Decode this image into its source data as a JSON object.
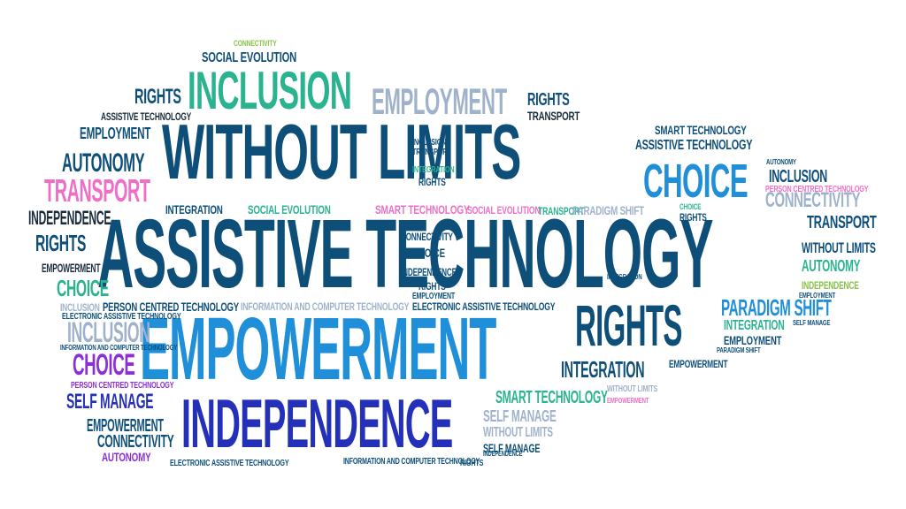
{
  "colors": {
    "navy": "#0e4f7a",
    "navy_dark": "#0b3b61",
    "blue": "#1e8fd8",
    "royal": "#2430b8",
    "teal": "#2ab38f",
    "slate": "#9fb2cc",
    "pink": "#ef6fc6",
    "purple": "#8b2fd6",
    "green": "#8ac24a",
    "black": "#1a2b3a",
    "grey": "#6a7a8a"
  },
  "words": [
    {
      "id": "w1",
      "text": "WITHOUT LIMITS",
      "color": "navy"
    },
    {
      "id": "w2",
      "text": "ASSISTIVE TECHNOLOGY",
      "color": "navy"
    },
    {
      "id": "w3",
      "text": "EMPOWERMENT",
      "color": "blue"
    },
    {
      "id": "w4",
      "text": "INDEPENDENCE",
      "color": "royal"
    },
    {
      "id": "w5",
      "text": "INCLUSION",
      "color": "teal"
    },
    {
      "id": "w6",
      "text": "EMPLOYMENT",
      "color": "slate"
    },
    {
      "id": "w7",
      "text": "CHOICE",
      "color": "blue"
    },
    {
      "id": "w8",
      "text": "RIGHTS",
      "color": "navy"
    },
    {
      "id": "w9",
      "text": "TRANSPORT",
      "color": "pink"
    },
    {
      "id": "w10",
      "text": "AUTONOMY",
      "color": "navy"
    },
    {
      "id": "w11",
      "text": "EMPLOYMENT",
      "color": "navy"
    },
    {
      "id": "w12",
      "text": "INDEPENDENCE",
      "color": "black"
    },
    {
      "id": "w13",
      "text": "RIGHTS",
      "color": "navy"
    },
    {
      "id": "w14",
      "text": "EMPOWERMENT",
      "color": "black"
    },
    {
      "id": "w15",
      "text": "CHOICE",
      "color": "teal"
    },
    {
      "id": "w16",
      "text": "INCLUSION",
      "color": "slate"
    },
    {
      "id": "w17",
      "text": "CHOICE",
      "color": "purple"
    },
    {
      "id": "w18",
      "text": "SELF MANAGE",
      "color": "royal"
    },
    {
      "id": "w19",
      "text": "EMPOWERMENT",
      "color": "navy"
    },
    {
      "id": "w20",
      "text": "CONNECTIVITY",
      "color": "navy"
    },
    {
      "id": "w21",
      "text": "AUTONOMY",
      "color": "purple"
    },
    {
      "id": "w22",
      "text": "SOCIAL EVOLUTION",
      "color": "navy"
    },
    {
      "id": "w23",
      "text": "RIGHTS",
      "color": "navy"
    },
    {
      "id": "w24",
      "text": "ASSISTIVE TECHNOLOGY",
      "color": "black"
    },
    {
      "id": "w25",
      "text": "RIGHTS",
      "color": "navy"
    },
    {
      "id": "w26",
      "text": "TRANSPORT",
      "color": "black"
    },
    {
      "id": "w27",
      "text": "SMART TECHNOLOGY",
      "color": "navy"
    },
    {
      "id": "w28",
      "text": "ASSISTIVE TECHNOLOGY",
      "color": "navy"
    },
    {
      "id": "w29",
      "text": "CONNECTIVITY",
      "color": "slate"
    },
    {
      "id": "w30",
      "text": "TRANSPORT",
      "color": "navy"
    },
    {
      "id": "w31",
      "text": "WITHOUT LIMITS",
      "color": "navy"
    },
    {
      "id": "w32",
      "text": "AUTONOMY",
      "color": "teal"
    },
    {
      "id": "w33",
      "text": "INDEPENDENCE",
      "color": "green"
    },
    {
      "id": "w34",
      "text": "PARADIGM SHIFT",
      "color": "blue"
    },
    {
      "id": "w35",
      "text": "INTEGRATION",
      "color": "teal"
    },
    {
      "id": "w36",
      "text": "EMPLOYMENT",
      "color": "navy"
    },
    {
      "id": "w37",
      "text": "RIGHTS",
      "color": "navy"
    },
    {
      "id": "w38",
      "text": "INTEGRATION",
      "color": "navy"
    },
    {
      "id": "w39",
      "text": "EMPOWERMENT",
      "color": "navy"
    },
    {
      "id": "w40",
      "text": "SMART TECHNOLOGY",
      "color": "teal"
    },
    {
      "id": "w41",
      "text": "SELF MANAGE",
      "color": "slate"
    },
    {
      "id": "w42",
      "text": "WITHOUT LIMITS",
      "color": "slate"
    },
    {
      "id": "w43",
      "text": "SELF MANAGE",
      "color": "navy"
    },
    {
      "id": "w44",
      "text": "INTEGRATION",
      "color": "navy"
    },
    {
      "id": "w45",
      "text": "SOCIAL EVOLUTION",
      "color": "teal"
    },
    {
      "id": "w46",
      "text": "SMART TECHNOLOGY",
      "color": "pink"
    },
    {
      "id": "w47",
      "text": "SOCIAL EVOLUTION",
      "color": "pink"
    },
    {
      "id": "w48",
      "text": "TRANSPORT",
      "color": "teal"
    },
    {
      "id": "w49",
      "text": "PARADIGM SHIFT",
      "color": "slate"
    },
    {
      "id": "w50",
      "text": "INCLUSION",
      "color": "navy"
    },
    {
      "id": "w51",
      "text": "PERSON CENTRED TECHNOLOGY",
      "color": "pink"
    },
    {
      "id": "w52",
      "text": "CONNECTIVITY",
      "color": "navy"
    },
    {
      "id": "w53",
      "text": "CHOICE",
      "color": "navy"
    },
    {
      "id": "w54",
      "text": "INDEPENDENCE",
      "color": "navy"
    },
    {
      "id": "w55",
      "text": "RIGHTS",
      "color": "navy"
    },
    {
      "id": "w56",
      "text": "EMPLOYMENT",
      "color": "navy"
    },
    {
      "id": "w57",
      "text": "PERSON CENTRED TECHNOLOGY",
      "color": "navy"
    },
    {
      "id": "w58",
      "text": "INFORMATION AND COMPUTER TECHNOLOGY",
      "color": "slate"
    },
    {
      "id": "w59",
      "text": "ELECTRONIC ASSISTIVE TECHNOLOGY",
      "color": "navy"
    },
    {
      "id": "w60",
      "text": "INCLUSION",
      "color": "slate"
    },
    {
      "id": "w61",
      "text": "ELECTRONIC ASSISTIVE TECHNOLOGY",
      "color": "navy"
    },
    {
      "id": "w62",
      "text": "INFORMATION AND COMPUTER TECHNOLOGY",
      "color": "navy"
    },
    {
      "id": "w63",
      "text": "PERSON CENTRED TECHNOLOGY",
      "color": "purple"
    },
    {
      "id": "w64",
      "text": "ELECTRONIC ASSISTIVE TECHNOLOGY",
      "color": "navy"
    },
    {
      "id": "w65",
      "text": "INFORMATION AND COMPUTER TECHNOLOGY",
      "color": "navy"
    },
    {
      "id": "w66",
      "text": "RIGHTS",
      "color": "navy"
    },
    {
      "id": "w67",
      "text": "INDEPENDENCE",
      "color": "navy"
    },
    {
      "id": "w68",
      "text": "CONNECTIVITY",
      "color": "green"
    },
    {
      "id": "w69",
      "text": "INTEGRATION",
      "color": "teal"
    },
    {
      "id": "w70",
      "text": "RIGHTS",
      "color": "navy"
    },
    {
      "id": "w71",
      "text": "INTEGRATION",
      "color": "navy"
    },
    {
      "id": "w72",
      "text": "INCLUSION",
      "color": "navy"
    },
    {
      "id": "w73",
      "text": "TRANSPORT",
      "color": "navy"
    },
    {
      "id": "w74",
      "text": "SELF MANAGE",
      "color": "navy"
    },
    {
      "id": "w75",
      "text": "EMPLOYMENT",
      "color": "navy"
    },
    {
      "id": "w76",
      "text": "PARADIGM SHIFT",
      "color": "navy"
    },
    {
      "id": "w77",
      "text": "WITHOUT LIMITS",
      "color": "slate"
    },
    {
      "id": "w78",
      "text": "EMPOWERMENT",
      "color": "pink"
    },
    {
      "id": "w79",
      "text": "AUTONOMY",
      "color": "navy"
    },
    {
      "id": "w80",
      "text": "CHOICE",
      "color": "teal"
    }
  ]
}
